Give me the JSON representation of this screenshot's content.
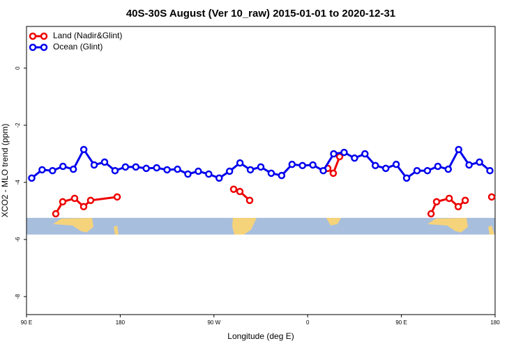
{
  "chart_data": {
    "type": "line",
    "title": "40S-30S August (Ver 10_raw)   2015-01-01 to 2020-12-31",
    "x_label": "Longitude (deg E)",
    "y_label": "XCO2 - MLO trend (ppm)",
    "xlim": [
      90,
      540
    ],
    "ylim": [
      -8.63,
      1.46
    ],
    "xticks": [
      {
        "value": 90,
        "label": "90 E"
      },
      180,
      {
        "value": 270,
        "label": "90 W"
      },
      {
        "value": 360,
        "label": "0"
      },
      {
        "value": 450,
        "label": "90 E"
      },
      {
        "value": 540,
        "label": "180"
      }
    ],
    "yticks": [
      0,
      -2,
      -4,
      -6,
      -8
    ],
    "legend": "top-left",
    "series": [
      {
        "name": "Land (Nadir&Glint)",
        "color": "#ee0000",
        "x": [
          118.1,
          124.8,
          136.2,
          144.9,
          151.6,
          177.1,
          null,
          288.9,
          294.9,
          304.3,
          null,
          379.3,
          384.6,
          390.7,
          null,
          478.5,
          483.8,
          495.9,
          504.6,
          511.3,
          null,
          536.7
        ],
        "values": [
          -5.1,
          -4.68,
          -4.56,
          -4.85,
          -4.63,
          -4.51,
          null,
          -4.24,
          -4.32,
          -4.63,
          null,
          -3.51,
          -3.68,
          -3.1,
          null,
          -5.1,
          -4.68,
          -4.56,
          -4.85,
          -4.63,
          null,
          -4.51
        ]
      },
      {
        "name": "Ocean (Glint)",
        "color": "#0000ee",
        "x": [
          95,
          105,
          115,
          125,
          135,
          145,
          155,
          165,
          175,
          185,
          195,
          205,
          215,
          225,
          235,
          245,
          255,
          265,
          275,
          285,
          295,
          305,
          315,
          325,
          335,
          345,
          355,
          365,
          375,
          385,
          395,
          405,
          415,
          425,
          435,
          445,
          455,
          465,
          475,
          485,
          495,
          505,
          515,
          525,
          535
        ],
        "values": [
          -3.85,
          -3.56,
          -3.59,
          -3.44,
          -3.54,
          -2.85,
          -3.39,
          -3.29,
          -3.59,
          -3.46,
          -3.46,
          -3.51,
          -3.49,
          -3.56,
          -3.54,
          -3.71,
          -3.61,
          -3.71,
          -3.85,
          -3.61,
          -3.32,
          -3.56,
          -3.46,
          -3.68,
          -3.76,
          -3.37,
          -3.41,
          -3.39,
          -3.59,
          -3.0,
          -2.95,
          -3.15,
          -3.0,
          -3.41,
          -3.51,
          -3.37,
          -3.85,
          -3.59,
          -3.59,
          -3.44,
          -3.54,
          -2.85,
          -3.39,
          -3.29,
          -3.59
        ]
      }
    ]
  }
}
